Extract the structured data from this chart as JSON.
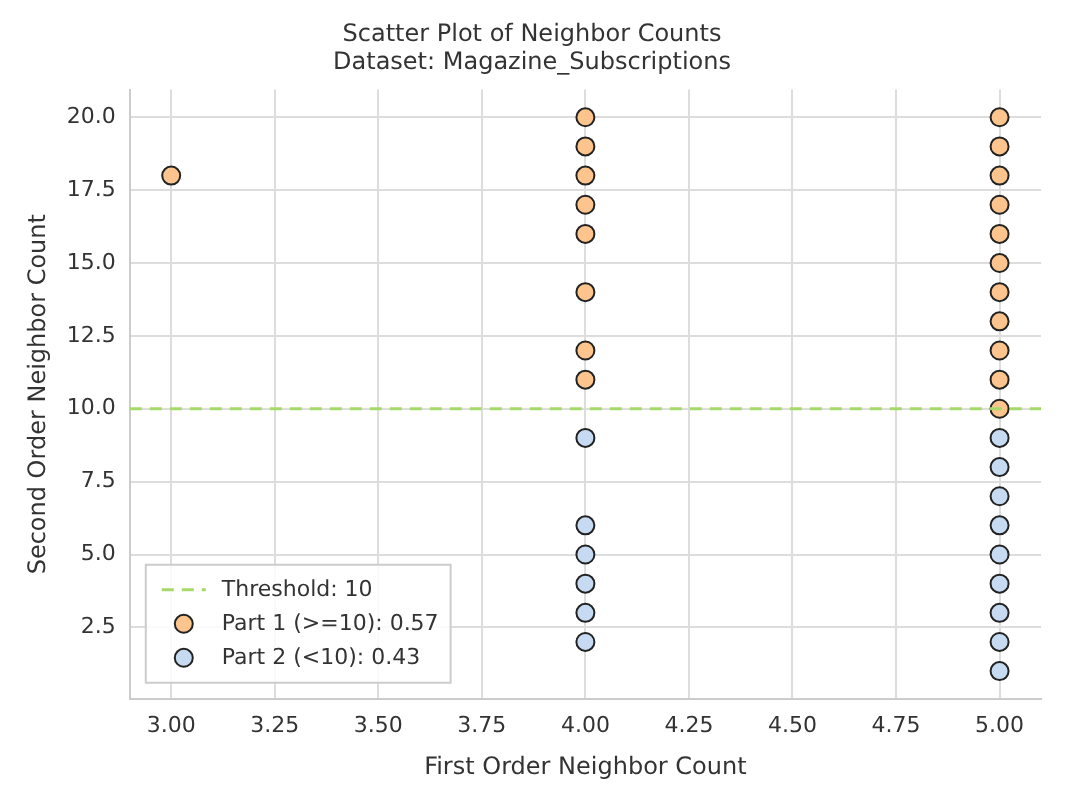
{
  "chart_data": {
    "type": "scatter",
    "title": "Scatter Plot of Neighbor Counts",
    "subtitle": "Dataset: Magazine_Subscriptions",
    "xlabel": "First Order Neighbor Count",
    "ylabel": "Second Order Neighbor Count",
    "series": [
      {
        "name": "Part 1 (>=10): 0.57",
        "color": "#fdc48e",
        "x": [
          3,
          4,
          4,
          4,
          4,
          4,
          4,
          4,
          4,
          5,
          5,
          5,
          5,
          5,
          5,
          5,
          5,
          5,
          5,
          5
        ],
        "values": [
          18,
          20,
          19,
          18,
          17,
          16,
          14,
          12,
          11,
          20,
          19,
          18,
          17,
          16,
          15,
          14,
          13,
          12,
          11,
          10
        ]
      },
      {
        "name": "Part 2 (<10): 0.43",
        "color": "#c6dbf2",
        "x": [
          4,
          4,
          4,
          4,
          4,
          4,
          5,
          5,
          5,
          5,
          5,
          5,
          5,
          5,
          5
        ],
        "values": [
          9,
          6,
          5,
          4,
          3,
          2,
          9,
          8,
          7,
          6,
          5,
          4,
          3,
          2,
          1
        ]
      }
    ],
    "ref_lines": [
      {
        "axis": "y",
        "value": 10,
        "label": "Threshold: 10",
        "color": "#a6d96a",
        "line_style": "dashed"
      }
    ],
    "xlim": [
      2.9,
      5.1
    ],
    "xticks": [
      {
        "value": 3,
        "label": "3.00"
      },
      {
        "value": 3.25,
        "label": "3.25"
      },
      {
        "value": 3.5,
        "label": "3.50"
      },
      {
        "value": 3.75,
        "label": "3.75"
      },
      {
        "value": 4,
        "label": "4.00"
      },
      {
        "value": 4.25,
        "label": "4.25"
      },
      {
        "value": 4.5,
        "label": "4.50"
      },
      {
        "value": 4.75,
        "label": "4.75"
      },
      {
        "value": 5,
        "label": "5.00"
      }
    ],
    "ylim": [
      0.05,
      20.95
    ],
    "yticks": [
      {
        "value": 2.5,
        "label": "2.5"
      },
      {
        "value": 5,
        "label": "5.0"
      },
      {
        "value": 7.5,
        "label": "7.5"
      },
      {
        "value": 10,
        "label": "10.0"
      },
      {
        "value": 12.5,
        "label": "12.5"
      },
      {
        "value": 15,
        "label": "15.0"
      },
      {
        "value": 17.5,
        "label": "17.5"
      },
      {
        "value": 20,
        "label": "20.0"
      }
    ],
    "grid": true,
    "legend": "bottom left",
    "marker": "circle"
  }
}
